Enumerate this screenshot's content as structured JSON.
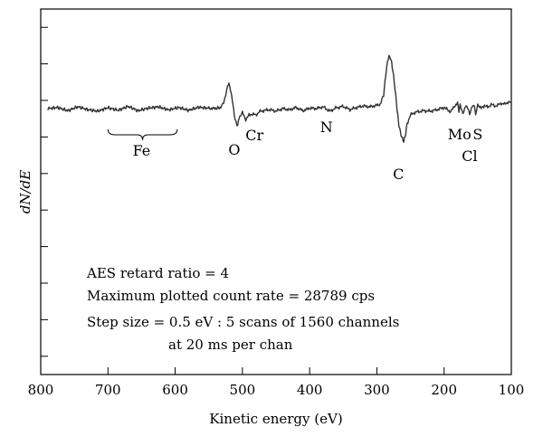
{
  "chart_data": {
    "type": "line",
    "xlabel": "Kinetic energy (eV)",
    "ylabel": "dN/dE",
    "xlim": [
      800,
      100
    ],
    "x_ticks": [
      800,
      700,
      600,
      500,
      400,
      300,
      200,
      100
    ],
    "x_tick_labels": [
      "800",
      "700",
      "600",
      "500",
      "400",
      "300",
      "200",
      "100"
    ],
    "y_ticks_count": 10,
    "y_tick_labels": [],
    "grid": false,
    "legend": "none",
    "series": [
      {
        "x": [
          790,
          775,
          760,
          745,
          730,
          715,
          700,
          685,
          670,
          655,
          640,
          625,
          610,
          595,
          580,
          565,
          550,
          540,
          532,
          528,
          525,
          522,
          520,
          518,
          515,
          512,
          510,
          507,
          505,
          500,
          495,
          490,
          485,
          480,
          475,
          470,
          460,
          450,
          440,
          430,
          420,
          410,
          400,
          390,
          380,
          370,
          360,
          350,
          340,
          330,
          320,
          310,
          300,
          295,
          290,
          287,
          284,
          282,
          280,
          278,
          276,
          274,
          272,
          270,
          268,
          265,
          262,
          260,
          258,
          255,
          250,
          245,
          240,
          230,
          220,
          210,
          200,
          190,
          185,
          180,
          178,
          176,
          172,
          168,
          165,
          162,
          158,
          155,
          153,
          150,
          145,
          140,
          135,
          130,
          125,
          120,
          115,
          110,
          105,
          100
        ],
        "y": [
          0.0,
          0.05,
          -0.1,
          0.08,
          -0.05,
          -0.12,
          0.04,
          -0.08,
          0.1,
          -0.1,
          0.02,
          0.08,
          -0.06,
          0.05,
          -0.08,
          0.06,
          0.02,
          0.0,
          0.05,
          0.25,
          0.6,
          1.05,
          1.15,
          0.9,
          0.4,
          -0.3,
          -0.6,
          -0.8,
          -0.4,
          -0.2,
          -0.5,
          -0.3,
          -0.25,
          -0.3,
          -0.15,
          -0.1,
          -0.05,
          -0.12,
          0.0,
          -0.06,
          0.05,
          -0.1,
          0.02,
          0.0,
          0.08,
          -0.12,
          0.04,
          0.1,
          -0.05,
          0.05,
          0.12,
          0.08,
          0.15,
          0.2,
          0.6,
          1.5,
          2.2,
          2.4,
          2.35,
          2.1,
          1.7,
          1.2,
          0.6,
          0.0,
          -0.6,
          -1.1,
          -1.4,
          -1.5,
          -1.3,
          -0.7,
          -0.3,
          -0.2,
          -0.15,
          -0.1,
          -0.12,
          -0.05,
          0.05,
          -0.15,
          0.1,
          0.25,
          -0.1,
          0.15,
          -0.2,
          0.12,
          0.05,
          -0.25,
          0.1,
          0.15,
          -0.3,
          0.2,
          0.0,
          0.15,
          0.05,
          0.2,
          0.12,
          0.15,
          0.25,
          0.2,
          0.3,
          0.28
        ]
      }
    ],
    "annotations": [
      {
        "label": "Fe",
        "x": 650
      },
      {
        "label": "O",
        "x": 512
      },
      {
        "label": "Cr",
        "x": 482
      },
      {
        "label": "N",
        "x": 375
      },
      {
        "label": "C",
        "x": 268
      },
      {
        "label": "Mo",
        "x": 177
      },
      {
        "label": "S",
        "x": 150
      },
      {
        "label": "Cl",
        "x": 162
      }
    ],
    "brace": {
      "from": 700,
      "to": 597
    },
    "info_text": [
      "AES retard ratio = 4",
      "Maximum plotted count rate = 28789 cps",
      "Step size = 0.5 eV : 5 scans of 1560 channels",
      "at 20 ms per chan"
    ]
  }
}
